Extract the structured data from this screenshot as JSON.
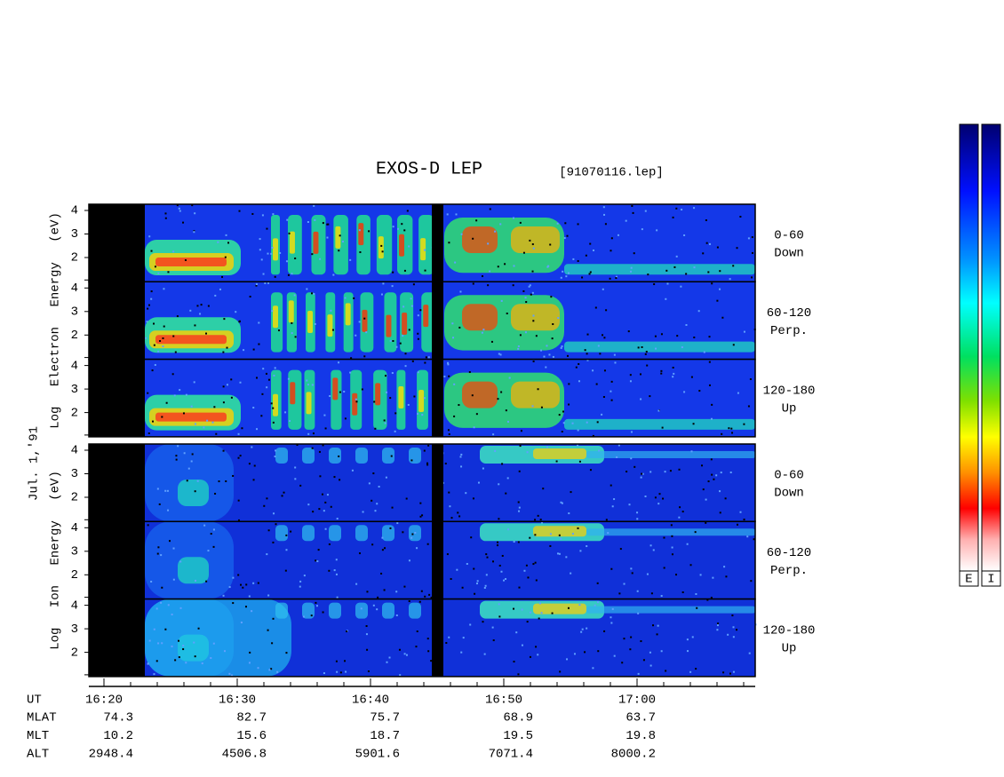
{
  "header": {
    "title": "EXOS-D LEP",
    "file": "[91070116.lep]"
  },
  "date": "Jul. 1,'91",
  "groups": [
    {
      "label": "Log Electron Energy (eV)",
      "yticks": [
        4,
        3,
        2
      ],
      "panels": [
        {
          "angle": "0-60",
          "direction": "Down"
        },
        {
          "angle": "60-120",
          "direction": "Perp."
        },
        {
          "angle": "120-180",
          "direction": "Up"
        }
      ]
    },
    {
      "label": "Log Ion Energy (eV)",
      "yticks": [
        4,
        3,
        2
      ],
      "panels": [
        {
          "angle": "0-60",
          "direction": "Down"
        },
        {
          "angle": "60-120",
          "direction": "Perp."
        },
        {
          "angle": "120-180",
          "direction": "Up"
        }
      ]
    }
  ],
  "time_axis": {
    "name": "UT",
    "ticks": [
      "16:20",
      "16:30",
      "16:40",
      "16:50",
      "17:00"
    ]
  },
  "ephemeris": [
    {
      "name": "MLAT",
      "values": [
        74.3,
        82.7,
        75.7,
        68.9,
        63.7
      ]
    },
    {
      "name": "MLT",
      "values": [
        10.2,
        15.6,
        18.7,
        19.5,
        19.8
      ]
    },
    {
      "name": "ALT",
      "values": [
        2948.4,
        4506.8,
        5901.6,
        7071.4,
        8000.2
      ]
    }
  ],
  "colorbars": [
    "E",
    "I"
  ]
}
